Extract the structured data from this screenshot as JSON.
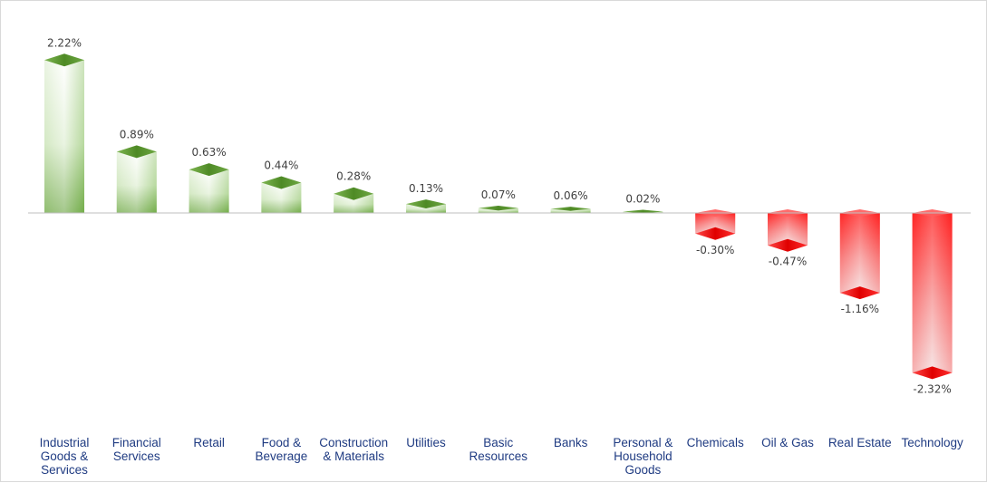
{
  "chart_data": {
    "type": "bar",
    "title": "",
    "xlabel": "",
    "ylabel": "",
    "ylim": [
      -2.6,
      2.6
    ],
    "grid": false,
    "legend": "none",
    "categories": [
      "Industrial Goods & Services",
      "Financial Services",
      "Retail",
      "Food & Beverage",
      "Construction & Materials",
      "Utilities",
      "Basic Resources",
      "Banks",
      "Personal & Household Goods",
      "Chemicals",
      "Oil & Gas",
      "Real Estate",
      "Technology"
    ],
    "category_lines": [
      [
        "Industrial",
        "Goods &",
        "Services"
      ],
      [
        "Financial",
        "Services"
      ],
      [
        "Retail"
      ],
      [
        "Food &",
        "Beverage"
      ],
      [
        "Construction",
        "& Materials"
      ],
      [
        "Utilities"
      ],
      [
        "Basic",
        "Resources"
      ],
      [
        "Banks"
      ],
      [
        "Personal &",
        "Household",
        "Goods"
      ],
      [
        "Chemicals"
      ],
      [
        "Oil & Gas"
      ],
      [
        "Real Estate"
      ],
      [
        "Technology"
      ]
    ],
    "values": [
      2.22,
      0.89,
      0.63,
      0.44,
      0.28,
      0.13,
      0.07,
      0.06,
      0.02,
      -0.3,
      -0.47,
      -1.16,
      -2.32
    ],
    "value_labels": [
      "2.22%",
      "0.89%",
      "0.63%",
      "0.44%",
      "0.28%",
      "0.13%",
      "0.07%",
      "0.06%",
      "0.02%",
      "-0.30%",
      "-0.47%",
      "-1.16%",
      "-2.32%"
    ],
    "colors": {
      "positive": "#5b9b2e",
      "positive_dark": "#4e8a25",
      "positive_light": "#ffffff",
      "negative": "#ff1a1a",
      "negative_dark": "#e00000",
      "negative_light": "#f2f2f2",
      "axis": "#bfbfbf",
      "value_text": "#404040",
      "category_text": "#1f3b82"
    }
  }
}
